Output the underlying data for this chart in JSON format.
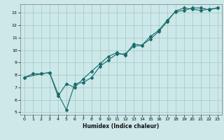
{
  "title": "",
  "xlabel": "Humidex (Indice chaleur)",
  "ylabel": "",
  "bg_color": "#cce8e8",
  "grid_color": "#aacccc",
  "line_color": "#1a6b6b",
  "xlim": [
    -0.5,
    23.5
  ],
  "ylim": [
    4.8,
    13.7
  ],
  "xticks": [
    0,
    1,
    2,
    3,
    4,
    5,
    6,
    7,
    8,
    9,
    10,
    11,
    12,
    13,
    14,
    15,
    16,
    17,
    18,
    19,
    20,
    21,
    22,
    23
  ],
  "yticks": [
    5,
    6,
    7,
    8,
    9,
    10,
    11,
    12,
    13
  ],
  "line1_x": [
    0,
    1,
    2,
    3,
    4,
    5,
    6,
    7,
    8,
    9,
    10,
    11,
    12,
    13,
    14,
    15,
    16,
    17,
    18,
    19,
    20,
    21,
    22,
    23
  ],
  "line1_y": [
    7.8,
    8.1,
    8.1,
    8.2,
    6.3,
    7.3,
    7.0,
    7.7,
    8.3,
    8.9,
    9.5,
    9.8,
    9.6,
    10.5,
    10.4,
    10.9,
    11.5,
    12.3,
    13.15,
    13.4,
    13.3,
    13.2,
    13.3,
    13.4
  ],
  "line2_x": [
    0,
    2,
    3,
    4,
    5,
    6,
    7,
    8,
    9,
    10,
    11,
    12,
    13,
    14,
    15,
    16,
    17,
    18,
    19,
    20,
    21,
    22,
    23
  ],
  "line2_y": [
    7.8,
    8.1,
    8.2,
    6.5,
    5.2,
    7.3,
    7.4,
    7.8,
    8.7,
    9.2,
    9.7,
    9.7,
    10.3,
    10.4,
    11.1,
    11.6,
    12.4,
    13.1,
    13.2,
    13.4,
    13.4,
    13.25,
    13.4
  ]
}
